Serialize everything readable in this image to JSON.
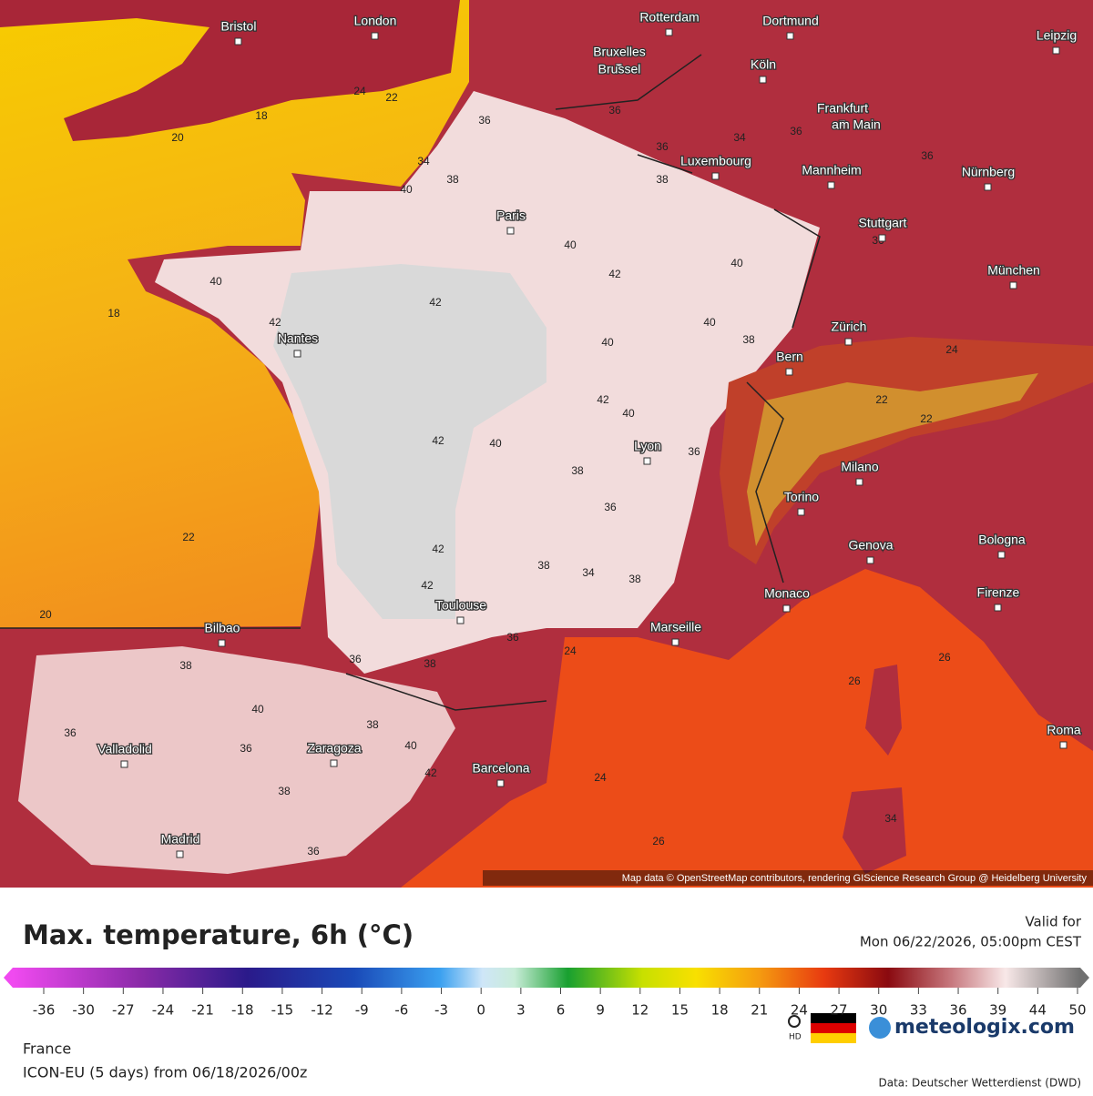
{
  "map": {
    "cities": [
      "Bristol",
      "London",
      "Rotterdam",
      "Dortmund",
      "Leipzig",
      "Bruxelles",
      "Brussel",
      "Köln",
      "Frankfurt",
      "am Main",
      "Luxembourg",
      "Mannheim",
      "Nürnberg",
      "Paris",
      "Stuttgart",
      "München",
      "Nantes",
      "Zürich",
      "Bern",
      "Lyon",
      "Milano",
      "Torino",
      "Genova",
      "Bologna",
      "Monaco",
      "Firenze",
      "Toulouse",
      "Bilbao",
      "Marseille",
      "Roma",
      "Valladolid",
      "Zaragoza",
      "Barcelona",
      "Madrid"
    ],
    "contour_labels": [
      36,
      38,
      40,
      34,
      40,
      42,
      42,
      40,
      42,
      40,
      40,
      38,
      40,
      42,
      40,
      42,
      40,
      38,
      36,
      36,
      42,
      42,
      38,
      34,
      38,
      36,
      24,
      36,
      38,
      40,
      38,
      40,
      42,
      36,
      36,
      38,
      38,
      36,
      24,
      26,
      34,
      26,
      26,
      20,
      22,
      18,
      18,
      20,
      22,
      24,
      36,
      36,
      36,
      34,
      36,
      36,
      38,
      22,
      24,
      22
    ],
    "attribution": "Map data © OpenStreetMap contributors, rendering GIScience Research Group @ Heidelberg University"
  },
  "header": {
    "title": "Max. temperature, 6h (°C)",
    "valid_label": "Valid for",
    "valid_time": "Mon 06/22/2026, 05:00pm CEST"
  },
  "legend": {
    "ticks": [
      -36,
      -30,
      -27,
      -24,
      -21,
      -18,
      -15,
      -12,
      -9,
      -6,
      -3,
      0,
      3,
      6,
      9,
      12,
      15,
      18,
      21,
      24,
      27,
      30,
      33,
      36,
      39,
      44,
      50
    ]
  },
  "footer": {
    "region": "France",
    "model": "ICON-EU (5 days) from 06/18/2026/00z",
    "hd": "HD",
    "brand": "meteologix.com",
    "source": "Data: Deutscher Wetterdienst (DWD)"
  }
}
